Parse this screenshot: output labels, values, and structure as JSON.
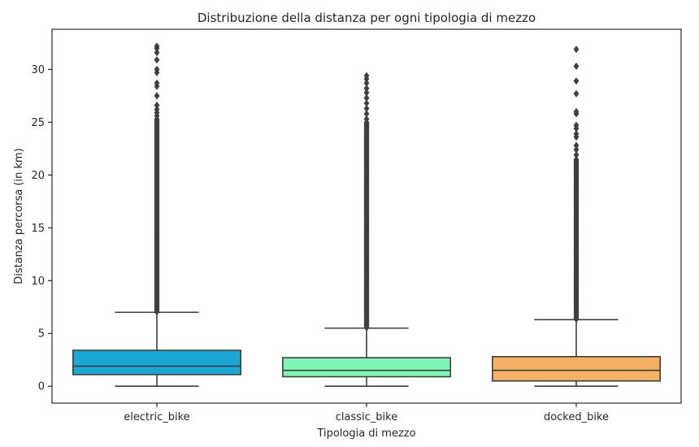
{
  "chart_data": {
    "type": "box",
    "title": "Distribuzione della distanza per ogni tipologia di mezzo",
    "xlabel": "Tipologia di mezzo",
    "ylabel": "Distanza percorsa (in km)",
    "ylim": [
      -1.6,
      33.8
    ],
    "yticks": [
      0,
      5,
      10,
      15,
      20,
      25,
      30
    ],
    "grid": false,
    "categories": [
      "electric_bike",
      "classic_bike",
      "docked_bike"
    ],
    "series": [
      {
        "category": "electric_bike",
        "color": "#1aa7d6",
        "whisker_low": 0.0,
        "q1": 1.1,
        "median": 1.9,
        "q3": 3.4,
        "whisker_high": 7.0,
        "outlier_dense_range": [
          7.0,
          25.3
        ],
        "outliers": [
          25.6,
          25.9,
          26.2,
          26.6,
          27.5,
          28.4,
          28.7,
          29.7,
          30.0,
          30.9,
          31.6,
          32.0,
          32.2
        ]
      },
      {
        "category": "classic_bike",
        "color": "#7ef5b4",
        "whisker_low": 0.0,
        "q1": 0.9,
        "median": 1.5,
        "q3": 2.7,
        "whisker_high": 5.5,
        "outlier_dense_range": [
          5.5,
          25.0
        ],
        "outliers": [
          25.3,
          25.8,
          26.3,
          26.8,
          27.3,
          27.8,
          28.2,
          28.7,
          29.1,
          29.4
        ]
      },
      {
        "category": "docked_bike",
        "color": "#f5b064",
        "whisker_low": 0.0,
        "q1": 0.5,
        "median": 1.5,
        "q3": 2.8,
        "whisker_high": 6.3,
        "outlier_dense_range": [
          6.3,
          21.5
        ],
        "outliers": [
          21.9,
          22.4,
          22.8,
          23.6,
          23.9,
          24.4,
          24.7,
          25.8,
          26.0,
          27.7,
          28.9,
          30.3,
          31.9
        ]
      }
    ]
  }
}
